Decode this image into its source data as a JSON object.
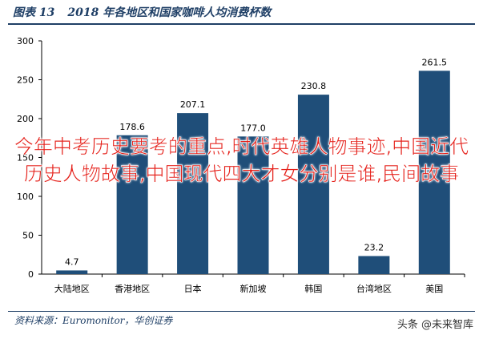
{
  "header": {
    "figure_label": "图表 13",
    "title": "2018 年各地区和国家咖啡人均消费杯数"
  },
  "chart_data": {
    "type": "bar",
    "categories": [
      "大陆地区",
      "香港地区",
      "日本",
      "新加坡",
      "韩国",
      "台湾地区",
      "美国"
    ],
    "values": [
      4.7,
      178.6,
      207.1,
      177.0,
      230.8,
      23.2,
      261.5
    ],
    "data_labels": [
      "4.7",
      "178.6",
      "207.1",
      "177.0",
      "230.8",
      "23.2",
      "261.5"
    ],
    "ylim": [
      0,
      300
    ],
    "yticks": [
      0,
      50,
      100,
      150,
      200,
      250,
      300
    ],
    "grid": false,
    "bar_color": "#1f4e79"
  },
  "footer": {
    "source": "资料来源：Euromonitor，华创证券",
    "watermark": "头条 @未来智库"
  },
  "overlay": {
    "text": "今年中考历史要考的重点,时代英雄人物事迹,中国近代历史人物故事,中国现代四大才女分别是谁,民间故事",
    "color": "#e5201a"
  }
}
